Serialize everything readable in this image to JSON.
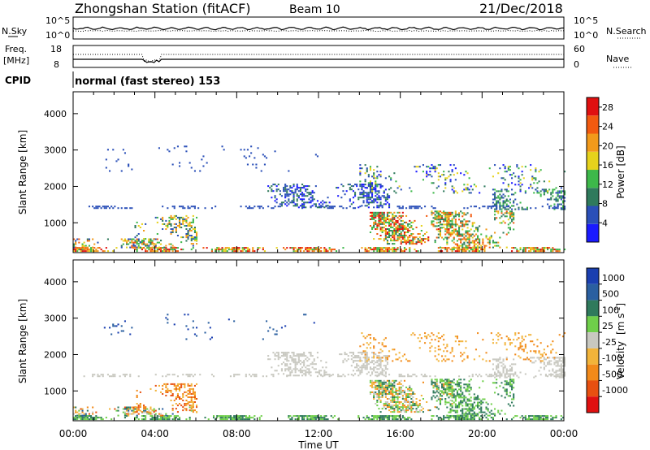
{
  "header": {
    "station": "Zhongshan Station (fitACF)",
    "beam": "Beam 10",
    "date": "21/Dec/2018"
  },
  "status_panel": {
    "nsky_label": "N.Sky",
    "nsearch_label": "N.Search",
    "noise_ticks": [
      "10^5",
      "10^0"
    ],
    "freq_label_1": "Freq.",
    "freq_label_2": "[MHz]",
    "freq_ticks": [
      "18",
      "8"
    ],
    "nave_label": "Nave",
    "nave_ticks": [
      "60",
      "0"
    ],
    "cpid_label": "CPID",
    "cpid_value": "normal (fast stereo) 153"
  },
  "colors": {
    "power_scale": [
      "#1a1aff",
      "#2a4fb8",
      "#2f7a5c",
      "#3db84a",
      "#e6d21c",
      "#f29a1a",
      "#f25a0f",
      "#e01010"
    ],
    "velocity_scale": [
      "#1a3fb0",
      "#2a5fa0",
      "#2f7a5c",
      "#6fcf4a",
      "#c8c8c0",
      "#f2b43a",
      "#f28a1a",
      "#e85010",
      "#e01010"
    ]
  },
  "chart_data": [
    {
      "type": "heatmap",
      "title": "Power",
      "ylabel": "Slant Range [km]",
      "ylim": [
        180,
        4600
      ],
      "yticks": [
        "1000",
        "2000",
        "3000",
        "4000"
      ],
      "xlim": [
        "00:00",
        "24:00"
      ],
      "colorbar": {
        "label": "Power [dB]",
        "ticks": [
          "4",
          "8",
          "12",
          "16",
          "20",
          "24",
          "28"
        ],
        "range": [
          0,
          30
        ]
      }
    },
    {
      "type": "heatmap",
      "title": "Velocity",
      "ylabel": "Slant Range [km]",
      "ylim": [
        180,
        4600
      ],
      "yticks": [
        "1000",
        "2000",
        "3000",
        "4000"
      ],
      "xlabel": "Time UT",
      "xticks": [
        "00:00",
        "04:00",
        "08:00",
        "12:00",
        "16:00",
        "20:00",
        "00:00"
      ],
      "colorbar": {
        "label": "Velocity",
        "label_unit": "[m s",
        "label_exp": "-1",
        "label_close": "]",
        "ticks": [
          "1000",
          "500",
          "100",
          "25",
          "-25",
          "-100",
          "-500",
          "-1000"
        ]
      }
    }
  ]
}
